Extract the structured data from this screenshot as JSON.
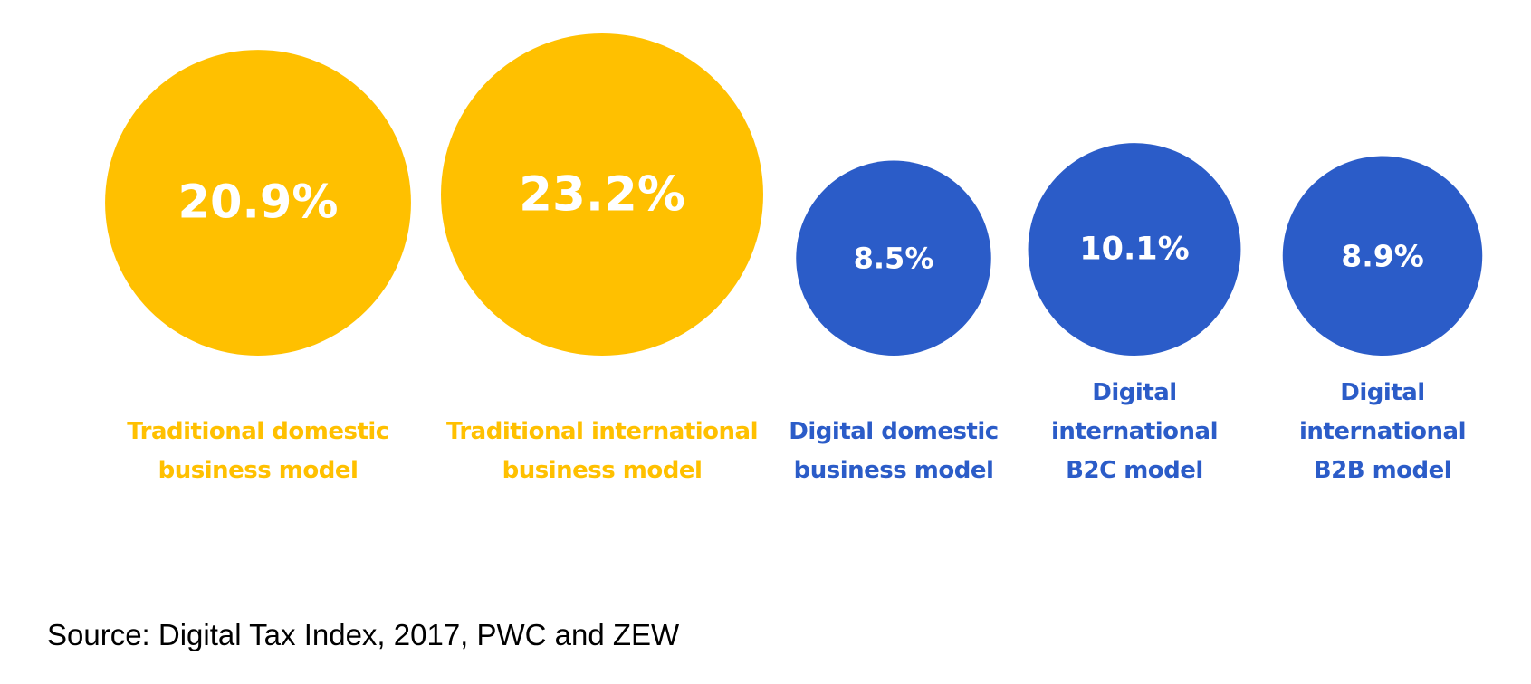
{
  "chart_data": {
    "type": "bubble",
    "title": "",
    "unit": "%",
    "colors": {
      "traditional": "#FFC000",
      "digital": "#2B5CC8",
      "value_text": "#FFFFFF"
    },
    "series": [
      {
        "name": "Traditional",
        "color": "#FFC000"
      },
      {
        "name": "Digital",
        "color": "#2B5CC8"
      }
    ],
    "bubbles": [
      {
        "label_lines": [
          "Traditional domestic",
          "business model"
        ],
        "value": 20.9,
        "value_label": "20.9%",
        "group": "traditional"
      },
      {
        "label_lines": [
          "Traditional international",
          "business model"
        ],
        "value": 23.2,
        "value_label": "23.2%",
        "group": "traditional"
      },
      {
        "label_lines": [
          "Digital domestic",
          "business model"
        ],
        "value": 8.5,
        "value_label": "8.5%",
        "group": "digital"
      },
      {
        "label_lines": [
          "Digital",
          "international",
          "B2C model"
        ],
        "value": 10.1,
        "value_label": "10.1%",
        "group": "digital"
      },
      {
        "label_lines": [
          "Digital",
          "international",
          "B2B model"
        ],
        "value": 8.9,
        "value_label": "8.9%",
        "group": "digital"
      }
    ]
  },
  "source": {
    "text": "Source: Digital Tax Index, 2017, PWC and ZEW"
  }
}
